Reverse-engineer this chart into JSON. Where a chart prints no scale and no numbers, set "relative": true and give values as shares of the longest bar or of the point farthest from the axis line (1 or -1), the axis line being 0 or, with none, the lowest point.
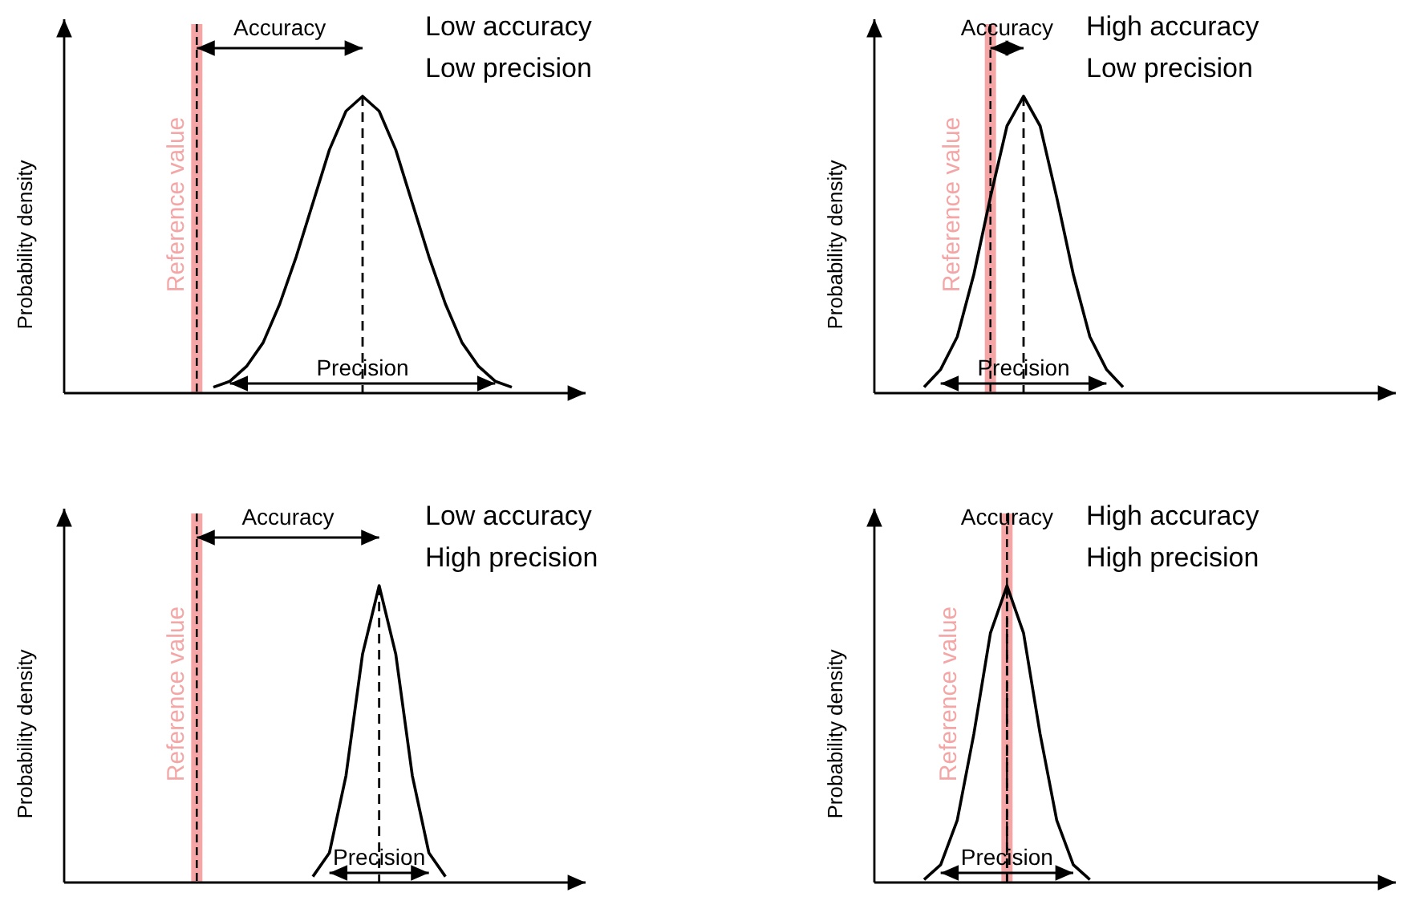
{
  "chart_data": [
    {
      "type": "line",
      "title": "Low accuracy",
      "subtitle": "Low precision",
      "ylabel": "Probability density",
      "relative": true,
      "annotations": [
        "Accuracy",
        "Precision",
        "Reference value"
      ],
      "categories": [
        null,
        null,
        null,
        null,
        null,
        null,
        null,
        null,
        null,
        null,
        null,
        null,
        null,
        null,
        null,
        null,
        null,
        null,
        null,
        null,
        null,
        null,
        null,
        null,
        null,
        null,
        null,
        null,
        null,
        null,
        null
      ],
      "series": [
        {
          "color": "#000000",
          "values": [
            null,
            null,
            null,
            null,
            null,
            null,
            null,
            null,
            null,
            0.02,
            0.04,
            0.09,
            0.17,
            0.3,
            0.46,
            0.64,
            0.82,
            0.95,
            1,
            0.95,
            0.82,
            0.64,
            0.46,
            0.3,
            0.17,
            0.09,
            0.04,
            0.02,
            null,
            null,
            null
          ]
        }
      ]
    },
    {
      "type": "line",
      "title": "High accuracy",
      "subtitle": "Low precision",
      "ylabel": "Probability density",
      "relative": true,
      "annotations": [
        "Accuracy",
        "Precision",
        "Reference value"
      ],
      "categories": [
        null,
        null,
        null,
        null,
        null,
        null,
        null,
        null,
        null,
        null,
        null,
        null,
        null,
        null,
        null,
        null,
        null,
        null,
        null,
        null,
        null,
        null,
        null,
        null,
        null,
        null,
        null,
        null,
        null,
        null,
        null
      ],
      "series": [
        {
          "color": "#000000",
          "values": [
            null,
            null,
            null,
            0.02,
            0.08,
            0.19,
            0.4,
            0.66,
            0.9,
            1,
            0.9,
            0.66,
            0.4,
            0.19,
            0.08,
            0.02,
            null,
            null,
            null,
            null,
            null,
            null,
            null,
            null,
            null,
            null,
            null,
            null,
            null,
            null,
            null
          ]
        }
      ]
    },
    {
      "type": "line",
      "title": "Low accuracy",
      "subtitle": "High precision",
      "ylabel": "Probability density",
      "relative": true,
      "annotations": [
        "Accuracy",
        "Precision",
        "Reference value"
      ],
      "categories": [
        null,
        null,
        null,
        null,
        null,
        null,
        null,
        null,
        null,
        null,
        null,
        null,
        null,
        null,
        null,
        null,
        null,
        null,
        null,
        null,
        null,
        null,
        null,
        null,
        null,
        null,
        null,
        null,
        null,
        null,
        null
      ],
      "series": [
        {
          "color": "#000000",
          "values": [
            null,
            null,
            null,
            null,
            null,
            null,
            null,
            null,
            null,
            null,
            null,
            null,
            null,
            null,
            null,
            0.02,
            0.1,
            0.36,
            0.77,
            1,
            0.77,
            0.36,
            0.1,
            0.02,
            null,
            null,
            null,
            null,
            null,
            null,
            null
          ]
        }
      ]
    },
    {
      "type": "line",
      "title": "High accuracy",
      "subtitle": "High precision",
      "ylabel": "Probability density",
      "relative": true,
      "annotations": [
        "Accuracy",
        "Precision",
        "Reference value"
      ],
      "categories": [
        null,
        null,
        null,
        null,
        null,
        null,
        null,
        null,
        null,
        null,
        null,
        null,
        null,
        null,
        null,
        null,
        null,
        null,
        null,
        null,
        null,
        null,
        null,
        null,
        null,
        null,
        null,
        null,
        null,
        null,
        null
      ],
      "series": [
        {
          "color": "#000000",
          "values": [
            null,
            null,
            null,
            0.01,
            0.06,
            0.21,
            0.5,
            0.84,
            1,
            0.84,
            0.5,
            0.21,
            0.06,
            0.01,
            null,
            null,
            null,
            null,
            null,
            null,
            null,
            null,
            null,
            null,
            null,
            null,
            null,
            null,
            null,
            null,
            null
          ]
        }
      ]
    }
  ]
}
